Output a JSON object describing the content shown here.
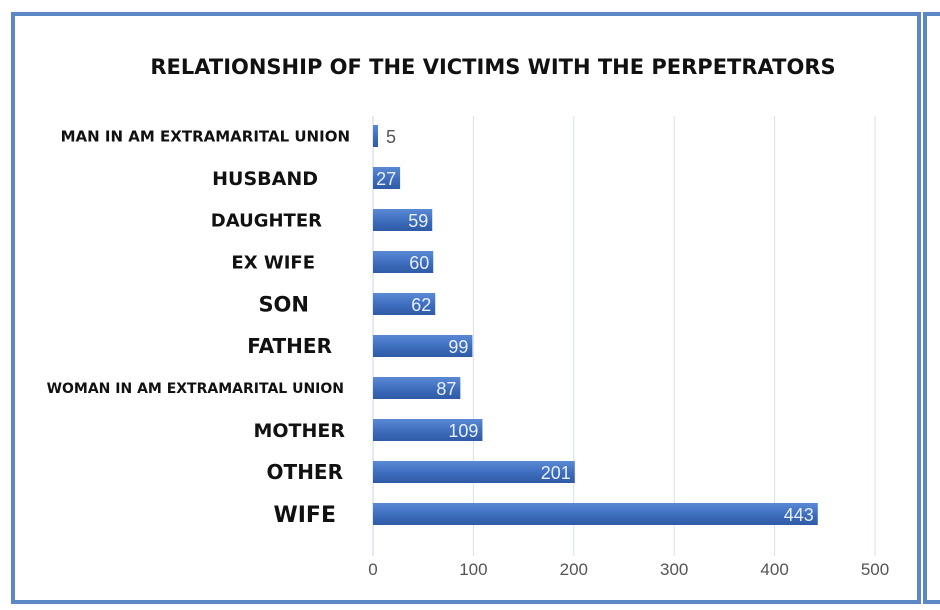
{
  "chart_data": {
    "type": "bar",
    "orientation": "horizontal",
    "title": "RELATIONSHIP OF THE VICTIMS WITH THE PERPETRATORS",
    "categories": [
      "MAN IN AM EXTRAMARITAL UNION",
      "HUSBAND",
      "DAUGHTER",
      "EX WIFE",
      "SON",
      "FATHER",
      "WOMAN IN AM EXTRAMARITAL UNION",
      "MOTHER",
      "OTHER",
      "WIFE"
    ],
    "values": [
      5,
      27,
      59,
      60,
      62,
      99,
      87,
      109,
      201,
      443
    ],
    "xlabel": "",
    "ylabel": "",
    "xlim": [
      0,
      500
    ],
    "xticks": [
      "0",
      "100",
      "200",
      "300",
      "400",
      "500"
    ],
    "grid": true,
    "legend": "none",
    "colors": {
      "bar": "#3f6fbf",
      "frame": "#5b87c5",
      "grid": "#d6e0f0"
    }
  }
}
